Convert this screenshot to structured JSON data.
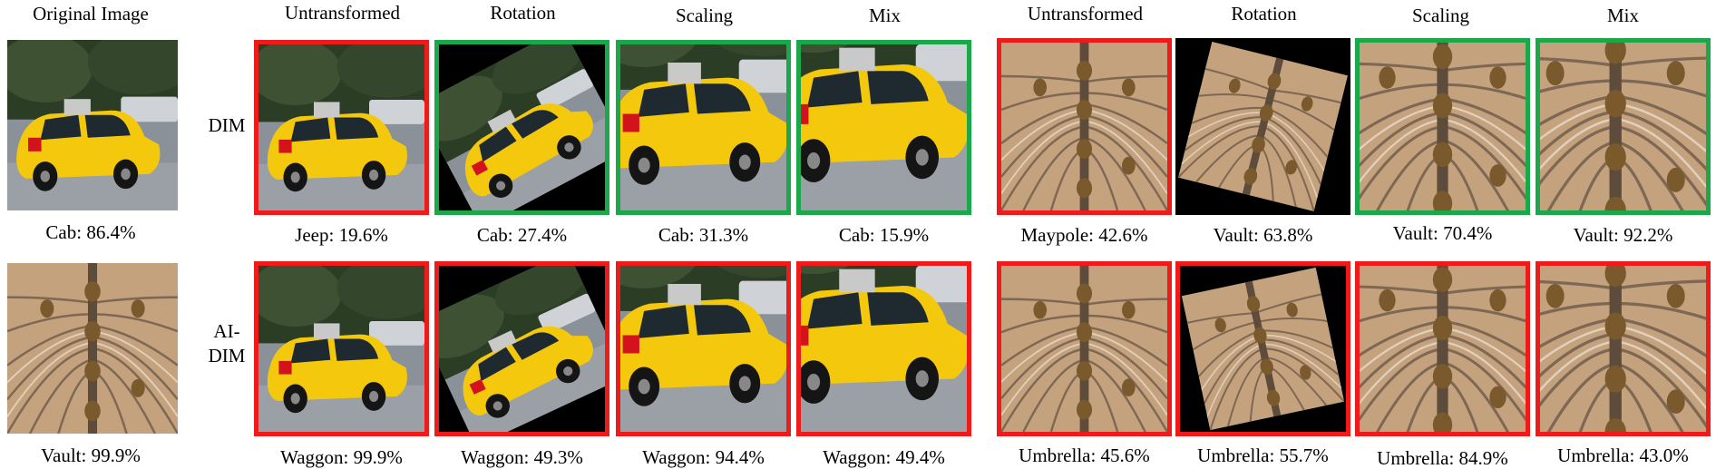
{
  "headers": {
    "original": "Original Image",
    "left": [
      "Untransformed",
      "Rotation",
      "Scaling",
      "Mix"
    ],
    "right": [
      "Untransformed",
      "Rotation",
      "Scaling",
      "Mix"
    ]
  },
  "row_labels": {
    "dim": "DIM",
    "aidim_line1": "AI-",
    "aidim_line2": "DIM"
  },
  "originals": {
    "cab_caption": "Cab: 86.4%",
    "vault_caption": "Vault: 99.9%"
  },
  "rows": {
    "dim_left": [
      {
        "caption": "Jeep: 19.6%",
        "border": "red"
      },
      {
        "caption": "Cab: 27.4%",
        "border": "green"
      },
      {
        "caption": "Cab: 31.3%",
        "border": "green"
      },
      {
        "caption": "Cab: 15.9%",
        "border": "green"
      }
    ],
    "dim_right": [
      {
        "caption": "Maypole: 42.6%",
        "border": "red"
      },
      {
        "caption": "Vault: 63.8%",
        "border": "green"
      },
      {
        "caption": "Vault: 70.4%",
        "border": "green"
      },
      {
        "caption": "Vault: 92.2%",
        "border": "green"
      }
    ],
    "aidim_left": [
      {
        "caption": "Waggon: 99.9%",
        "border": "red"
      },
      {
        "caption": "Waggon: 49.3%",
        "border": "red"
      },
      {
        "caption": "Waggon: 94.4%",
        "border": "red"
      },
      {
        "caption": "Waggon: 49.4%",
        "border": "red"
      }
    ],
    "aidim_right": [
      {
        "caption": "Umbrella: 45.6%",
        "border": "red"
      },
      {
        "caption": "Umbrella: 55.7%",
        "border": "red"
      },
      {
        "caption": "Umbrella: 84.9%",
        "border": "red"
      },
      {
        "caption": "Umbrella: 43.0%",
        "border": "red"
      }
    ]
  },
  "colors": {
    "success_border": "#1aa84a",
    "fail_border": "#ef1a1a"
  }
}
